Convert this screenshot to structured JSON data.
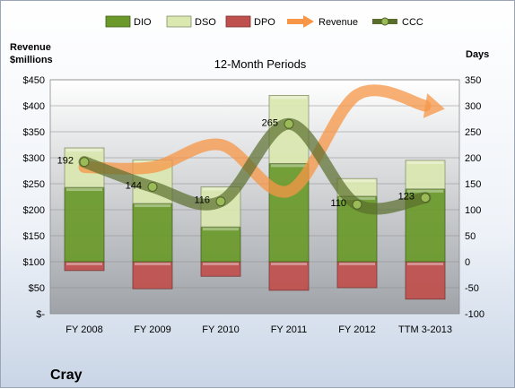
{
  "company": "Cray",
  "chart_data": {
    "type": "bar",
    "title": "12-Month Periods",
    "left_axis_label": [
      "Revenue",
      "$millions"
    ],
    "right_axis_label": "Days",
    "categories": [
      "FY 2008",
      "FY 2009",
      "FY 2010",
      "FY 2011",
      "FY 2012",
      "TTM 3-2013"
    ],
    "left_axis": {
      "min": 0,
      "max": 450,
      "ticks": [
        0,
        50,
        100,
        150,
        200,
        250,
        300,
        350,
        400,
        450
      ],
      "tick_labels": [
        "$-",
        "$50",
        "$100",
        "$150",
        "$200",
        "$250",
        "$300",
        "$350",
        "$400",
        "$450"
      ]
    },
    "right_axis": {
      "min": -100,
      "max": 350,
      "ticks": [
        -100,
        -50,
        0,
        50,
        100,
        150,
        200,
        250,
        300,
        350
      ]
    },
    "stacked_series": [
      {
        "name": "DPO",
        "color": "#c0504d",
        "values": [
          -17,
          -52,
          -28,
          -55,
          -50,
          -72
        ]
      },
      {
        "name": "DIO",
        "color": "#6b9a2b",
        "values": [
          143,
          112,
          67,
          189,
          126,
          140
        ]
      },
      {
        "name": "DSO",
        "color": "#dbe8b0",
        "values": [
          76,
          84,
          77,
          131,
          34,
          55
        ]
      }
    ],
    "line_series": [
      {
        "name": "Revenue",
        "color": "#f79646",
        "values": [
          282,
          282,
          325,
          236,
          421,
          400
        ]
      },
      {
        "name": "CCC",
        "color": "#5a6e2c",
        "values": [
          192,
          144,
          116,
          265,
          110,
          123
        ]
      }
    ],
    "ccc_labels": [
      "192",
      "144",
      "116",
      "265",
      "110",
      "123"
    ],
    "legend": [
      "DIO",
      "DSO",
      "DPO",
      "Revenue",
      "CCC"
    ],
    "legend_position": "top"
  }
}
